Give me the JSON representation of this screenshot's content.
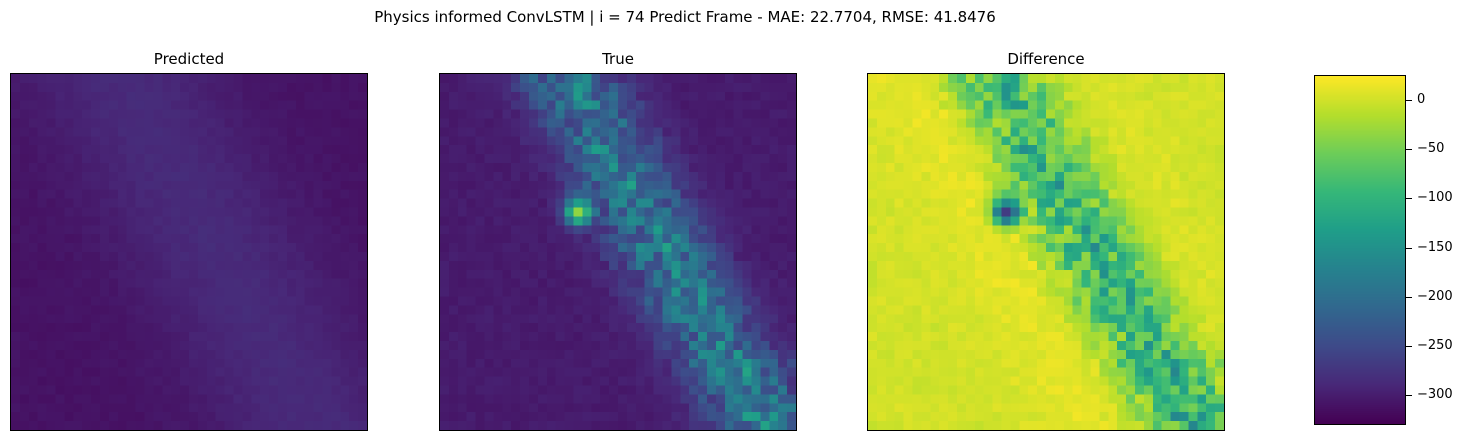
{
  "figure": {
    "suptitle": "Physics informed ConvLSTM | i = 74 Predict Frame - MAE: 22.7704, RMSE: 41.8476"
  },
  "panels": [
    {
      "title": "Predicted"
    },
    {
      "title": "True"
    },
    {
      "title": "Difference"
    }
  ],
  "chart_data": {
    "type": "heatmap",
    "colormap": "viridis",
    "grid_size": [
      40,
      40
    ],
    "panels": [
      "Predicted",
      "True",
      "Difference"
    ],
    "colorbar": {
      "applies_to": "Difference",
      "range": [
        -330,
        25
      ],
      "ticks": [
        0,
        -50,
        -100,
        -150,
        -200,
        -250,
        -300
      ],
      "tick_labels": [
        "0",
        "−50",
        "−100",
        "−150",
        "−200",
        "−250",
        "−300"
      ]
    }
  }
}
